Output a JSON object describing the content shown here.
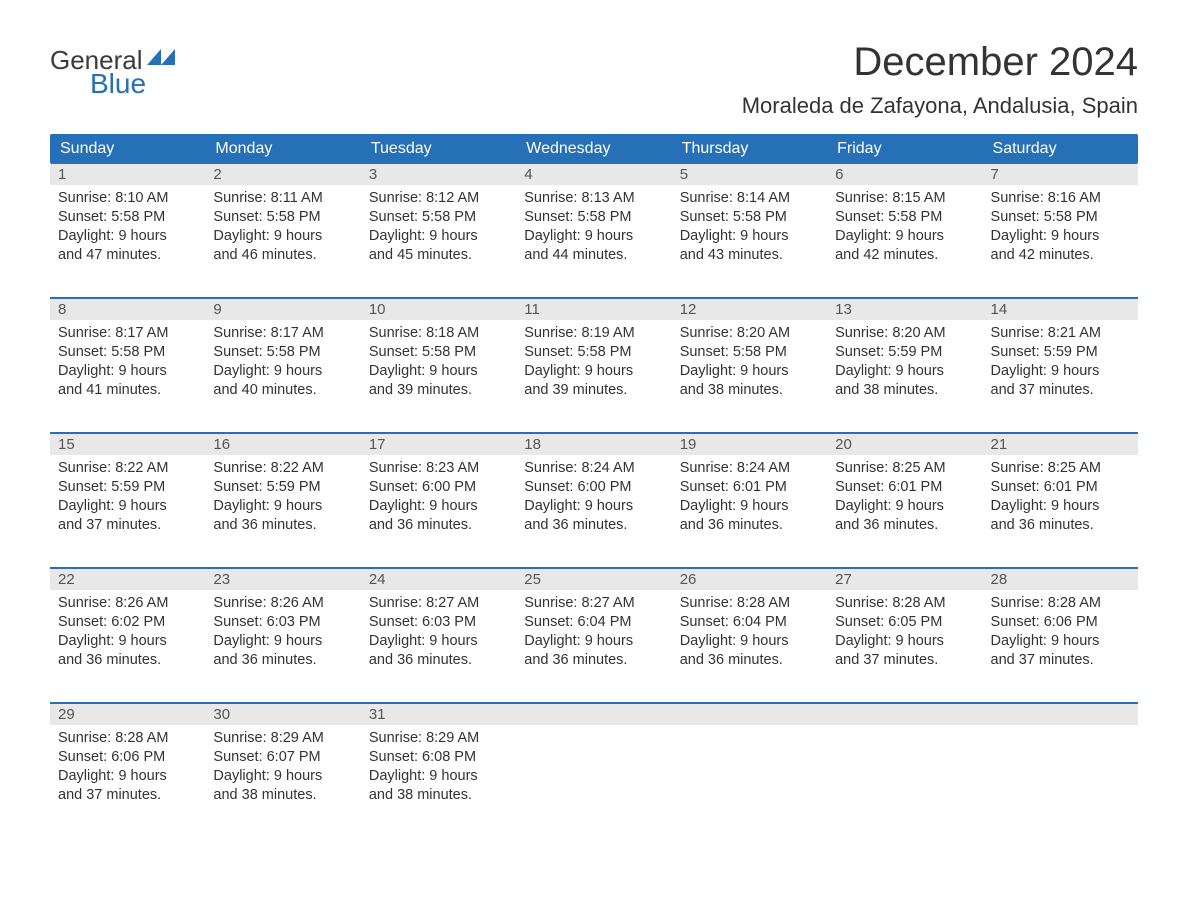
{
  "logo": {
    "text_general": "General",
    "text_blue": "Blue",
    "flag_color": "#2670b8"
  },
  "title": "December 2024",
  "location": "Moraleda de Zafayona, Andalusia, Spain",
  "colors": {
    "header_bg": "#2670b8",
    "header_text": "#ffffff",
    "day_number_bg": "#e8e8e8",
    "text": "#333333",
    "border": "#2670b8"
  },
  "day_names": [
    "Sunday",
    "Monday",
    "Tuesday",
    "Wednesday",
    "Thursday",
    "Friday",
    "Saturday"
  ],
  "weeks": [
    [
      {
        "day": "1",
        "sunrise": "Sunrise: 8:10 AM",
        "sunset": "Sunset: 5:58 PM",
        "daylight1": "Daylight: 9 hours",
        "daylight2": "and 47 minutes."
      },
      {
        "day": "2",
        "sunrise": "Sunrise: 8:11 AM",
        "sunset": "Sunset: 5:58 PM",
        "daylight1": "Daylight: 9 hours",
        "daylight2": "and 46 minutes."
      },
      {
        "day": "3",
        "sunrise": "Sunrise: 8:12 AM",
        "sunset": "Sunset: 5:58 PM",
        "daylight1": "Daylight: 9 hours",
        "daylight2": "and 45 minutes."
      },
      {
        "day": "4",
        "sunrise": "Sunrise: 8:13 AM",
        "sunset": "Sunset: 5:58 PM",
        "daylight1": "Daylight: 9 hours",
        "daylight2": "and 44 minutes."
      },
      {
        "day": "5",
        "sunrise": "Sunrise: 8:14 AM",
        "sunset": "Sunset: 5:58 PM",
        "daylight1": "Daylight: 9 hours",
        "daylight2": "and 43 minutes."
      },
      {
        "day": "6",
        "sunrise": "Sunrise: 8:15 AM",
        "sunset": "Sunset: 5:58 PM",
        "daylight1": "Daylight: 9 hours",
        "daylight2": "and 42 minutes."
      },
      {
        "day": "7",
        "sunrise": "Sunrise: 8:16 AM",
        "sunset": "Sunset: 5:58 PM",
        "daylight1": "Daylight: 9 hours",
        "daylight2": "and 42 minutes."
      }
    ],
    [
      {
        "day": "8",
        "sunrise": "Sunrise: 8:17 AM",
        "sunset": "Sunset: 5:58 PM",
        "daylight1": "Daylight: 9 hours",
        "daylight2": "and 41 minutes."
      },
      {
        "day": "9",
        "sunrise": "Sunrise: 8:17 AM",
        "sunset": "Sunset: 5:58 PM",
        "daylight1": "Daylight: 9 hours",
        "daylight2": "and 40 minutes."
      },
      {
        "day": "10",
        "sunrise": "Sunrise: 8:18 AM",
        "sunset": "Sunset: 5:58 PM",
        "daylight1": "Daylight: 9 hours",
        "daylight2": "and 39 minutes."
      },
      {
        "day": "11",
        "sunrise": "Sunrise: 8:19 AM",
        "sunset": "Sunset: 5:58 PM",
        "daylight1": "Daylight: 9 hours",
        "daylight2": "and 39 minutes."
      },
      {
        "day": "12",
        "sunrise": "Sunrise: 8:20 AM",
        "sunset": "Sunset: 5:58 PM",
        "daylight1": "Daylight: 9 hours",
        "daylight2": "and 38 minutes."
      },
      {
        "day": "13",
        "sunrise": "Sunrise: 8:20 AM",
        "sunset": "Sunset: 5:59 PM",
        "daylight1": "Daylight: 9 hours",
        "daylight2": "and 38 minutes."
      },
      {
        "day": "14",
        "sunrise": "Sunrise: 8:21 AM",
        "sunset": "Sunset: 5:59 PM",
        "daylight1": "Daylight: 9 hours",
        "daylight2": "and 37 minutes."
      }
    ],
    [
      {
        "day": "15",
        "sunrise": "Sunrise: 8:22 AM",
        "sunset": "Sunset: 5:59 PM",
        "daylight1": "Daylight: 9 hours",
        "daylight2": "and 37 minutes."
      },
      {
        "day": "16",
        "sunrise": "Sunrise: 8:22 AM",
        "sunset": "Sunset: 5:59 PM",
        "daylight1": "Daylight: 9 hours",
        "daylight2": "and 36 minutes."
      },
      {
        "day": "17",
        "sunrise": "Sunrise: 8:23 AM",
        "sunset": "Sunset: 6:00 PM",
        "daylight1": "Daylight: 9 hours",
        "daylight2": "and 36 minutes."
      },
      {
        "day": "18",
        "sunrise": "Sunrise: 8:24 AM",
        "sunset": "Sunset: 6:00 PM",
        "daylight1": "Daylight: 9 hours",
        "daylight2": "and 36 minutes."
      },
      {
        "day": "19",
        "sunrise": "Sunrise: 8:24 AM",
        "sunset": "Sunset: 6:01 PM",
        "daylight1": "Daylight: 9 hours",
        "daylight2": "and 36 minutes."
      },
      {
        "day": "20",
        "sunrise": "Sunrise: 8:25 AM",
        "sunset": "Sunset: 6:01 PM",
        "daylight1": "Daylight: 9 hours",
        "daylight2": "and 36 minutes."
      },
      {
        "day": "21",
        "sunrise": "Sunrise: 8:25 AM",
        "sunset": "Sunset: 6:01 PM",
        "daylight1": "Daylight: 9 hours",
        "daylight2": "and 36 minutes."
      }
    ],
    [
      {
        "day": "22",
        "sunrise": "Sunrise: 8:26 AM",
        "sunset": "Sunset: 6:02 PM",
        "daylight1": "Daylight: 9 hours",
        "daylight2": "and 36 minutes."
      },
      {
        "day": "23",
        "sunrise": "Sunrise: 8:26 AM",
        "sunset": "Sunset: 6:03 PM",
        "daylight1": "Daylight: 9 hours",
        "daylight2": "and 36 minutes."
      },
      {
        "day": "24",
        "sunrise": "Sunrise: 8:27 AM",
        "sunset": "Sunset: 6:03 PM",
        "daylight1": "Daylight: 9 hours",
        "daylight2": "and 36 minutes."
      },
      {
        "day": "25",
        "sunrise": "Sunrise: 8:27 AM",
        "sunset": "Sunset: 6:04 PM",
        "daylight1": "Daylight: 9 hours",
        "daylight2": "and 36 minutes."
      },
      {
        "day": "26",
        "sunrise": "Sunrise: 8:28 AM",
        "sunset": "Sunset: 6:04 PM",
        "daylight1": "Daylight: 9 hours",
        "daylight2": "and 36 minutes."
      },
      {
        "day": "27",
        "sunrise": "Sunrise: 8:28 AM",
        "sunset": "Sunset: 6:05 PM",
        "daylight1": "Daylight: 9 hours",
        "daylight2": "and 37 minutes."
      },
      {
        "day": "28",
        "sunrise": "Sunrise: 8:28 AM",
        "sunset": "Sunset: 6:06 PM",
        "daylight1": "Daylight: 9 hours",
        "daylight2": "and 37 minutes."
      }
    ],
    [
      {
        "day": "29",
        "sunrise": "Sunrise: 8:28 AM",
        "sunset": "Sunset: 6:06 PM",
        "daylight1": "Daylight: 9 hours",
        "daylight2": "and 37 minutes."
      },
      {
        "day": "30",
        "sunrise": "Sunrise: 8:29 AM",
        "sunset": "Sunset: 6:07 PM",
        "daylight1": "Daylight: 9 hours",
        "daylight2": "and 38 minutes."
      },
      {
        "day": "31",
        "sunrise": "Sunrise: 8:29 AM",
        "sunset": "Sunset: 6:08 PM",
        "daylight1": "Daylight: 9 hours",
        "daylight2": "and 38 minutes."
      },
      {
        "empty": true
      },
      {
        "empty": true
      },
      {
        "empty": true
      },
      {
        "empty": true
      }
    ]
  ]
}
